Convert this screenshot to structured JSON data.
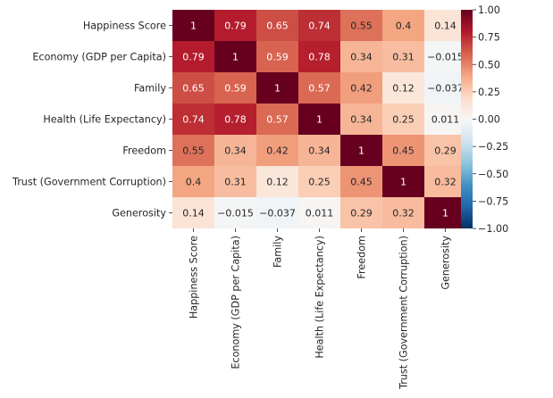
{
  "chart_data": {
    "type": "heatmap",
    "row_labels": [
      "Happiness Score",
      "Economy (GDP per Capita)",
      "Family",
      "Health (Life Expectancy)",
      "Freedom",
      "Trust (Government Corruption)",
      "Generosity"
    ],
    "col_labels": [
      "Happiness Score",
      "Economy (GDP per Capita)",
      "Family",
      "Health (Life Expectancy)",
      "Freedom",
      "Trust (Government Corruption)",
      "Generosity"
    ],
    "values": [
      [
        1,
        0.79,
        0.65,
        0.74,
        0.55,
        0.4,
        0.14
      ],
      [
        0.79,
        1,
        0.59,
        0.78,
        0.34,
        0.31,
        -0.015
      ],
      [
        0.65,
        0.59,
        1,
        0.57,
        0.42,
        0.12,
        -0.037
      ],
      [
        0.74,
        0.78,
        0.57,
        1,
        0.34,
        0.25,
        0.011
      ],
      [
        0.55,
        0.34,
        0.42,
        0.34,
        1,
        0.45,
        0.29
      ],
      [
        0.4,
        0.31,
        0.12,
        0.25,
        0.45,
        1,
        0.32
      ],
      [
        0.14,
        -0.015,
        -0.037,
        0.011,
        0.29,
        0.32,
        1
      ]
    ],
    "colormap": "RdBu_r",
    "vmin": -1,
    "vmax": 1,
    "colorbar_ticks": [
      "1.00",
      "0.75",
      "0.50",
      "0.25",
      "0.00",
      "−0.25",
      "−0.50",
      "−0.75",
      "−1.00"
    ],
    "colorbar_tick_values": [
      1,
      0.75,
      0.5,
      0.25,
      0,
      -0.25,
      -0.5,
      -0.75,
      -1
    ]
  }
}
